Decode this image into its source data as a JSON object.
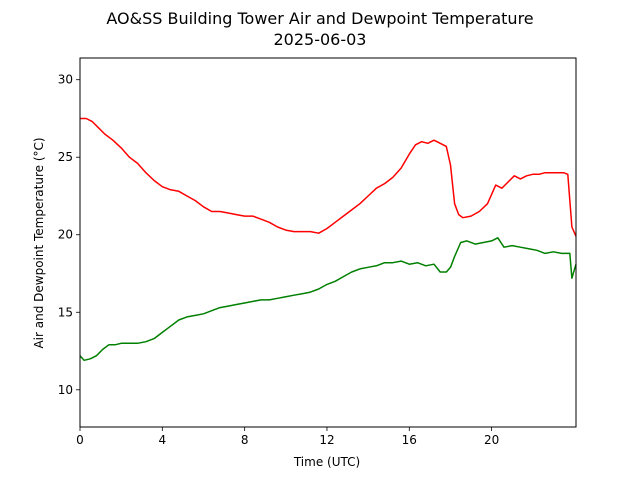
{
  "chart_data": {
    "type": "line",
    "title": "AO&SS Building Tower Air and Dewpoint Temperature",
    "subtitle": "2025-06-03",
    "xlabel": "Time (UTC)",
    "ylabel": "Air and Dewpoint Temperature (°C)",
    "xlim": [
      0,
      24.1
    ],
    "ylim": [
      7.6,
      31.4
    ],
    "xticks": [
      0,
      4,
      8,
      12,
      16,
      20
    ],
    "yticks": [
      10,
      15,
      20,
      25,
      30
    ],
    "grid": false,
    "legend": "none",
    "series": [
      {
        "color": "#ff0000",
        "x": [
          0,
          0.3,
          0.6,
          0.9,
          1.2,
          1.6,
          2.0,
          2.4,
          2.8,
          3.2,
          3.6,
          4.0,
          4.4,
          4.8,
          5.2,
          5.6,
          6.0,
          6.4,
          6.8,
          7.2,
          7.6,
          8.0,
          8.4,
          8.8,
          9.2,
          9.6,
          10.0,
          10.4,
          10.8,
          11.2,
          11.6,
          12.0,
          12.4,
          12.8,
          13.2,
          13.6,
          14.0,
          14.4,
          14.8,
          15.2,
          15.6,
          16.0,
          16.3,
          16.6,
          16.9,
          17.2,
          17.5,
          17.8,
          18.0,
          18.2,
          18.4,
          18.6,
          19.0,
          19.4,
          19.8,
          20.0,
          20.2,
          20.5,
          20.8,
          21.1,
          21.4,
          21.7,
          22.0,
          22.3,
          22.6,
          22.9,
          23.2,
          23.5,
          23.7,
          23.9,
          24.1
        ],
        "y": [
          27.5,
          27.5,
          27.3,
          26.9,
          26.5,
          26.1,
          25.6,
          25.0,
          24.6,
          24.0,
          23.5,
          23.1,
          22.9,
          22.8,
          22.5,
          22.2,
          21.8,
          21.5,
          21.5,
          21.4,
          21.3,
          21.2,
          21.2,
          21.0,
          20.8,
          20.5,
          20.3,
          20.2,
          20.2,
          20.2,
          20.1,
          20.4,
          20.8,
          21.2,
          21.6,
          22.0,
          22.5,
          23.0,
          23.3,
          23.7,
          24.3,
          25.2,
          25.8,
          26.0,
          25.9,
          26.1,
          25.9,
          25.7,
          24.5,
          22.0,
          21.3,
          21.1,
          21.2,
          21.5,
          22.0,
          22.6,
          23.2,
          23.0,
          23.4,
          23.8,
          23.6,
          23.8,
          23.9,
          23.9,
          24.0,
          24.0,
          24.0,
          24.0,
          23.9,
          20.5,
          19.9
        ]
      },
      {
        "color": "#008000",
        "x": [
          0,
          0.2,
          0.5,
          0.8,
          1.1,
          1.4,
          1.7,
          2.0,
          2.4,
          2.8,
          3.2,
          3.6,
          4.0,
          4.4,
          4.8,
          5.2,
          5.6,
          6.0,
          6.4,
          6.8,
          7.2,
          7.6,
          8.0,
          8.4,
          8.8,
          9.2,
          9.6,
          10.0,
          10.4,
          10.8,
          11.2,
          11.6,
          12.0,
          12.4,
          12.8,
          13.2,
          13.6,
          14.0,
          14.4,
          14.8,
          15.2,
          15.6,
          16.0,
          16.4,
          16.8,
          17.2,
          17.5,
          17.8,
          18.0,
          18.2,
          18.5,
          18.8,
          19.2,
          19.6,
          20.0,
          20.3,
          20.6,
          21.0,
          21.4,
          21.8,
          22.2,
          22.6,
          23.0,
          23.4,
          23.8,
          23.9,
          24.1
        ],
        "y": [
          12.2,
          11.9,
          12.0,
          12.2,
          12.6,
          12.9,
          12.9,
          13.0,
          13.0,
          13.0,
          13.1,
          13.3,
          13.7,
          14.1,
          14.5,
          14.7,
          14.8,
          14.9,
          15.1,
          15.3,
          15.4,
          15.5,
          15.6,
          15.7,
          15.8,
          15.8,
          15.9,
          16.0,
          16.1,
          16.2,
          16.3,
          16.5,
          16.8,
          17.0,
          17.3,
          17.6,
          17.8,
          17.9,
          18.0,
          18.2,
          18.2,
          18.3,
          18.1,
          18.2,
          18.0,
          18.1,
          17.6,
          17.6,
          17.9,
          18.6,
          19.5,
          19.6,
          19.4,
          19.5,
          19.6,
          19.8,
          19.2,
          19.3,
          19.2,
          19.1,
          19.0,
          18.8,
          18.9,
          18.8,
          18.8,
          17.2,
          18.1
        ]
      }
    ]
  }
}
